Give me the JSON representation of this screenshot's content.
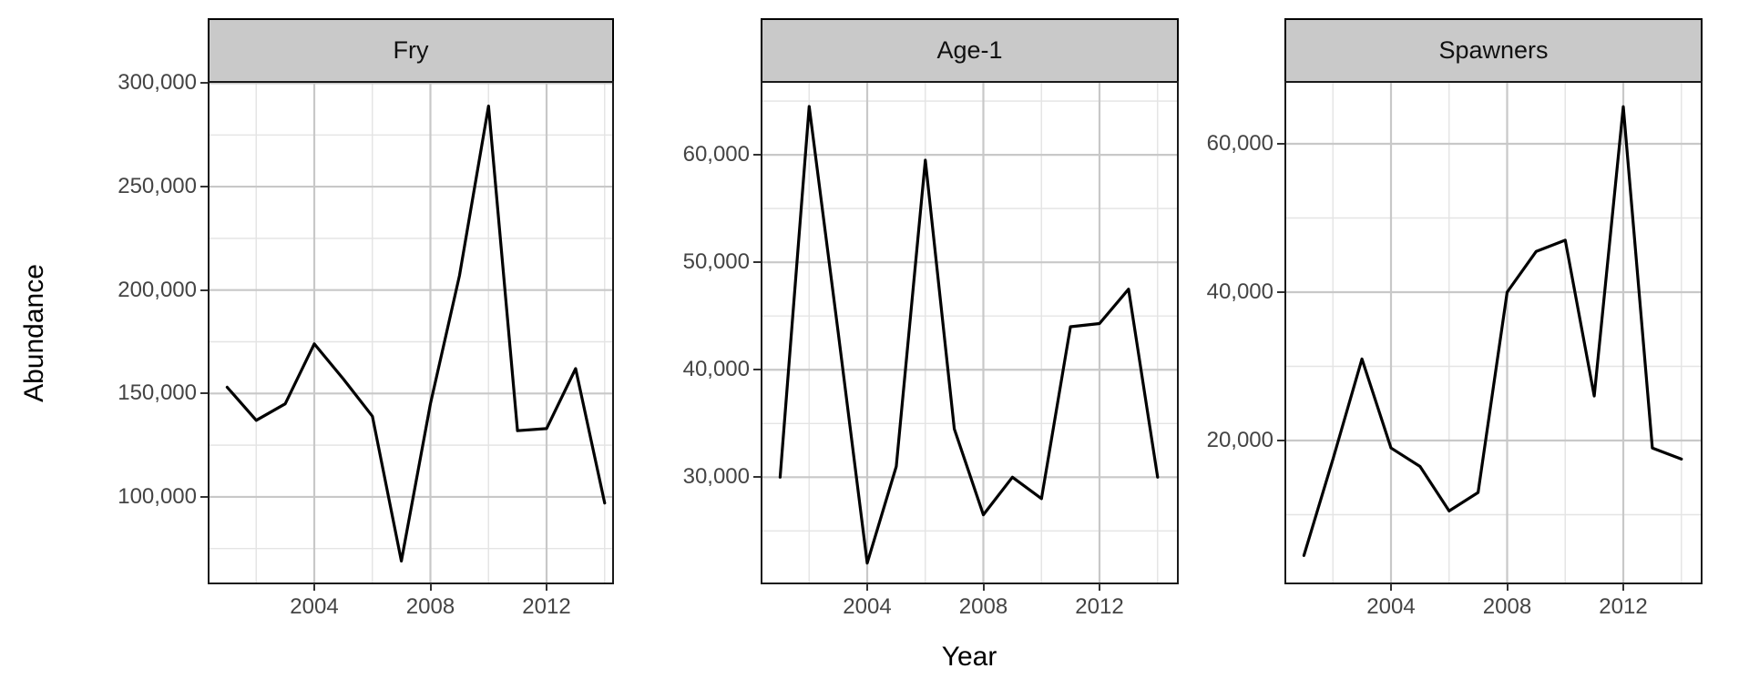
{
  "figure": {
    "y_axis_title": "Abundance",
    "x_axis_title": "Year",
    "background": "#FFFFFF",
    "strip_fill": "#C9C9C9",
    "line_color": "#000000",
    "major_grid_color": "#C8C8C8",
    "minor_grid_color": "#E4E4E4",
    "tick_label_color": "#444444"
  },
  "chart_data": [
    {
      "type": "line",
      "facet": "Fry",
      "xlabel": "Year",
      "ylabel": "Abundance",
      "x": [
        2001,
        2002,
        2003,
        2004,
        2005,
        2006,
        2007,
        2008,
        2009,
        2010,
        2011,
        2012,
        2013,
        2014
      ],
      "values": [
        153000,
        137000,
        145000,
        174000,
        157000,
        139000,
        69000,
        145000,
        207000,
        289000,
        132000,
        133000,
        162000,
        97000
      ],
      "xticks": [
        2004,
        2008,
        2012
      ],
      "xtick_labels": [
        "2004",
        "2008",
        "2012"
      ],
      "xticks_minor": [
        2002,
        2006,
        2010,
        2014
      ],
      "yticks": [
        100000,
        150000,
        200000,
        250000,
        300000
      ],
      "ytick_labels": [
        "100,000",
        "150,000",
        "200,000",
        "250,000",
        "300,000"
      ],
      "yticks_minor": [
        75000,
        125000,
        175000,
        225000,
        275000
      ],
      "ylim": [
        58600,
        300200
      ],
      "xlim": [
        2000.4,
        2014.6
      ],
      "grid": true,
      "legend": "none"
    },
    {
      "type": "line",
      "facet": "Age-1",
      "xlabel": "Year",
      "ylabel": "Abundance",
      "x": [
        2001,
        2002,
        2003,
        2004,
        2005,
        2006,
        2007,
        2008,
        2009,
        2010,
        2011,
        2012,
        2013,
        2014
      ],
      "values": [
        30000,
        64500,
        43500,
        22000,
        31000,
        59500,
        34500,
        26500,
        30000,
        28000,
        44000,
        44300,
        47500,
        30000
      ],
      "xticks": [
        2004,
        2008,
        2012
      ],
      "xtick_labels": [
        "2004",
        "2008",
        "2012"
      ],
      "xticks_minor": [
        2002,
        2006,
        2010,
        2014
      ],
      "yticks": [
        30000,
        40000,
        50000,
        60000
      ],
      "ytick_labels": [
        "30,000",
        "40,000",
        "50,000",
        "60,000"
      ],
      "yticks_minor": [
        25000,
        35000,
        45000,
        55000,
        65000
      ],
      "ylim": [
        20200,
        66700
      ],
      "xlim": [
        2000.4,
        2014.6
      ],
      "grid": true,
      "legend": "none"
    },
    {
      "type": "line",
      "facet": "Spawners",
      "xlabel": "Year",
      "ylabel": "Abundance",
      "x": [
        2001,
        2002,
        2003,
        2004,
        2005,
        2006,
        2007,
        2008,
        2009,
        2010,
        2011,
        2012,
        2013,
        2014
      ],
      "values": [
        4500,
        17500,
        31000,
        19000,
        16500,
        10500,
        13000,
        40000,
        45500,
        47000,
        26000,
        65000,
        19000,
        17500
      ],
      "xticks": [
        2004,
        2008,
        2012
      ],
      "xtick_labels": [
        "2004",
        "2008",
        "2012"
      ],
      "xticks_minor": [
        2002,
        2006,
        2010,
        2014
      ],
      "yticks": [
        20000,
        40000,
        60000
      ],
      "ytick_labels": [
        "20,000",
        "40,000",
        "60,000"
      ],
      "yticks_minor": [
        10000,
        30000,
        50000
      ],
      "ylim": [
        860,
        68220
      ],
      "xlim": [
        2000.4,
        2014.6
      ],
      "grid": true,
      "legend": "none"
    }
  ]
}
